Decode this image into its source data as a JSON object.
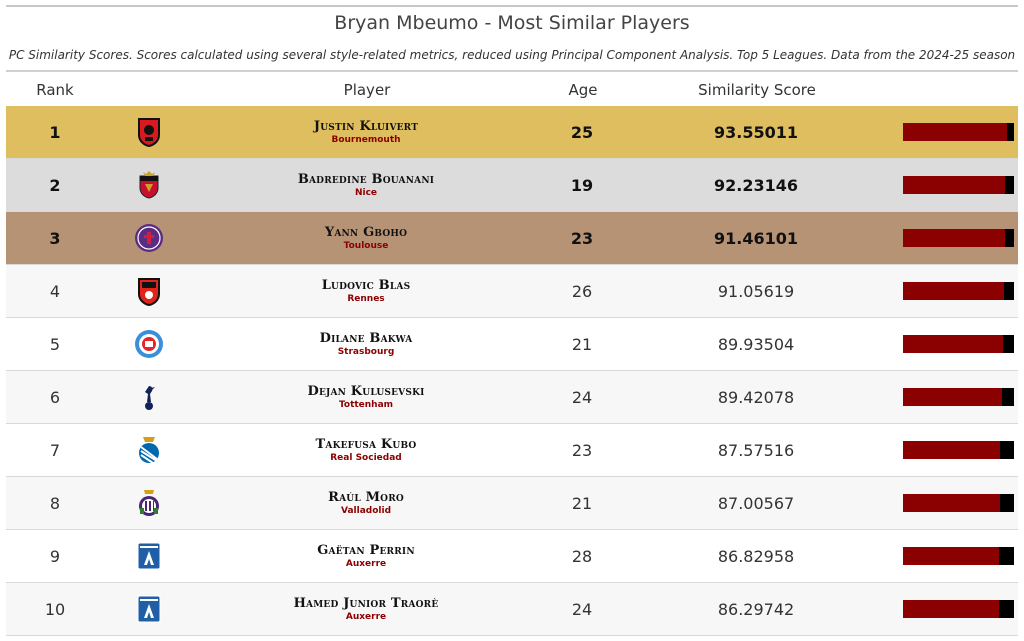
{
  "title": "Bryan Mbeumo - Most Similar Players",
  "subtitle": "PC Similarity Scores. Scores calculated using several style-related metrics, reduced using Principal Component Analysis. Top 5 Leagues. Data from the 2024-25 season",
  "headers": {
    "rank": "Rank",
    "player": "Player",
    "age": "Age",
    "score": "Similarity Score"
  },
  "colors": {
    "gold": "#dfbe5f",
    "silver": "#dcdcdc",
    "bronze": "#b79376",
    "bar": "#8b0000",
    "team": "#8b0000"
  },
  "chart_data": {
    "type": "table",
    "title": "Bryan Mbeumo - Most Similar Players",
    "columns": [
      "Rank",
      "Player",
      "Age",
      "Similarity Score"
    ],
    "rows": [
      {
        "rank": "1",
        "player": "Justin Kluivert",
        "team": "Bournemouth",
        "age": "25",
        "score": "93.55011",
        "score_value": 93.55011,
        "logo": "bournemouth-crest"
      },
      {
        "rank": "2",
        "player": "Badredine Bouanani",
        "team": "Nice",
        "age": "19",
        "score": "92.23146",
        "score_value": 92.23146,
        "logo": "nice-crest"
      },
      {
        "rank": "3",
        "player": "Yann Gboho",
        "team": "Toulouse",
        "age": "23",
        "score": "91.46101",
        "score_value": 91.46101,
        "logo": "toulouse-crest"
      },
      {
        "rank": "4",
        "player": "Ludovic Blas",
        "team": "Rennes",
        "age": "26",
        "score": "91.05619",
        "score_value": 91.05619,
        "logo": "rennes-crest"
      },
      {
        "rank": "5",
        "player": "Dilane Bakwa",
        "team": "Strasbourg",
        "age": "21",
        "score": "89.93504",
        "score_value": 89.93504,
        "logo": "strasbourg-crest"
      },
      {
        "rank": "6",
        "player": "Dejan Kulusevski",
        "team": "Tottenham",
        "age": "24",
        "score": "89.42078",
        "score_value": 89.42078,
        "logo": "tottenham-crest"
      },
      {
        "rank": "7",
        "player": "Takefusa Kubo",
        "team": "Real Sociedad",
        "age": "23",
        "score": "87.57516",
        "score_value": 87.57516,
        "logo": "real-sociedad-crest"
      },
      {
        "rank": "8",
        "player": "Raúl Moro",
        "team": "Valladolid",
        "age": "21",
        "score": "87.00567",
        "score_value": 87.00567,
        "logo": "valladolid-crest"
      },
      {
        "rank": "9",
        "player": "Gaëtan Perrin",
        "team": "Auxerre",
        "age": "28",
        "score": "86.82958",
        "score_value": 86.82958,
        "logo": "auxerre-crest"
      },
      {
        "rank": "10",
        "player": "Hamed Junior Traorè",
        "team": "Auxerre",
        "age": "24",
        "score": "86.29742",
        "score_value": 86.29742,
        "logo": "auxerre-crest"
      }
    ],
    "bar_range": [
      0,
      100
    ]
  }
}
